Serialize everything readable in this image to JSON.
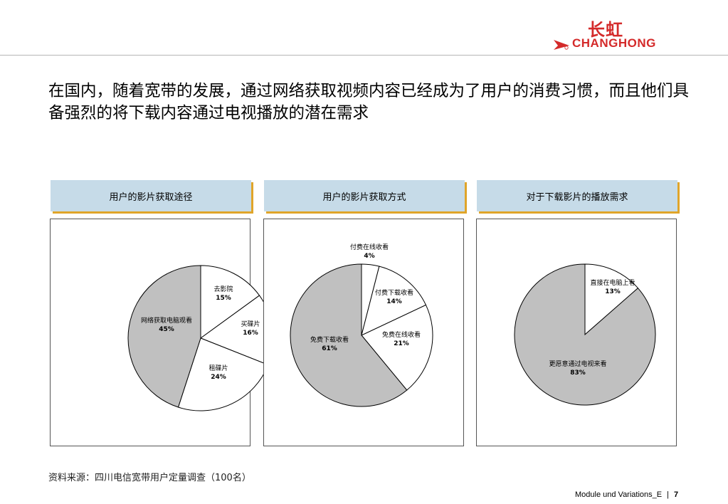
{
  "logo": {
    "cn": "长虹",
    "en": "CHANGHONG"
  },
  "headline": "在国内，随着宽带的发展，通过网络获取视频内容已经成为了用户的消费习惯，而且他们具备强烈的将下载内容通过电视播放的潜在需求",
  "colors": {
    "grey": "#c0c0c0",
    "white": "#ffffff",
    "header_bg": "#c6dbe8",
    "header_shadow": "#e0a52a",
    "logo_red": "#d42a2a"
  },
  "chart_data": [
    {
      "type": "pie",
      "title": "用户的影片获取途径",
      "slices": [
        {
          "label": "去影院",
          "value": 15,
          "pct_label": "15%",
          "color": "#ffffff"
        },
        {
          "label": "买/碟片",
          "value": 16,
          "pct_label": "16%",
          "color": "#ffffff",
          "display": "买碟片"
        },
        {
          "label": "租碟片",
          "value": 24,
          "pct_label": "24%",
          "color": "#ffffff"
        },
        {
          "label": "网络获取电脑观看",
          "value": 45,
          "pct_label": "45%",
          "color": "#c0c0c0"
        }
      ]
    },
    {
      "type": "pie",
      "title": "用户的影片获取方式",
      "slices": [
        {
          "label": "付费在线收看",
          "value": 4,
          "pct_label": "4%",
          "color": "#ffffff"
        },
        {
          "label": "付费下载收看",
          "value": 14,
          "pct_label": "14%",
          "color": "#ffffff"
        },
        {
          "label": "免费在线收看",
          "value": 21,
          "pct_label": "21%",
          "color": "#ffffff"
        },
        {
          "label": "免费下载收看",
          "value": 61,
          "pct_label": "61%",
          "color": "#c0c0c0"
        }
      ]
    },
    {
      "type": "pie",
      "title": "对于下载影片的播放需求",
      "slices": [
        {
          "label": "直接在电脑上看",
          "value": 13,
          "pct_label": "13%",
          "color": "#ffffff"
        },
        {
          "label": "更愿意通过电视来看",
          "value": 83,
          "pct_label": "83%",
          "color": "#c0c0c0"
        }
      ]
    }
  ],
  "source": "资料来源：四川电信宽带用户定量调查（100名）",
  "footer": {
    "module": "Module und Variations_E",
    "separator": "|",
    "page": "7"
  }
}
